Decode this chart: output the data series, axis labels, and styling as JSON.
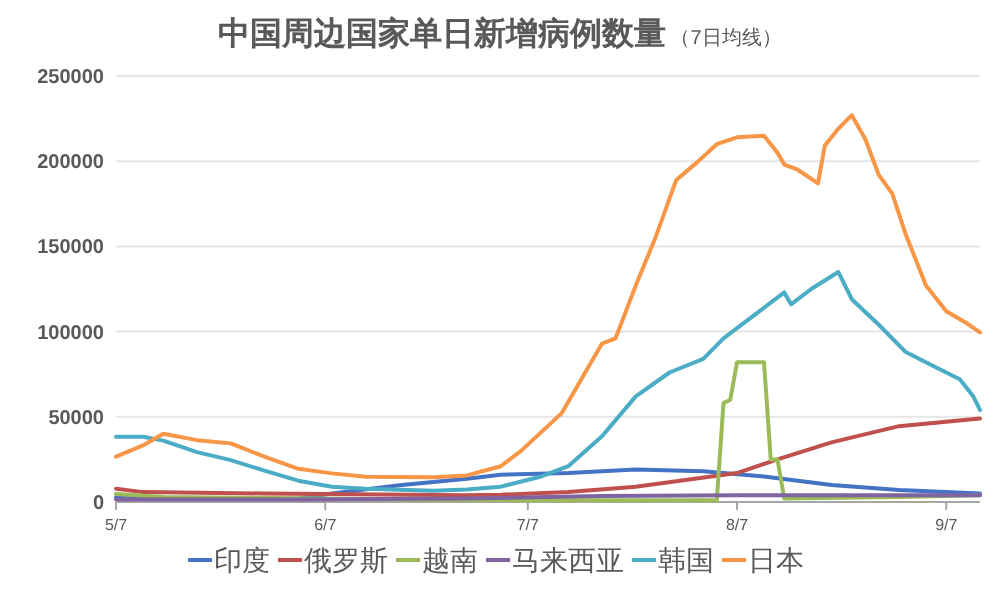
{
  "chart_data": {
    "type": "line",
    "title": "中国周边国家单日新增病例数量",
    "subtitle": "（7日均线）",
    "xlim": [
      "--05-07",
      "--09-12"
    ],
    "xticks": [
      {
        "value": "--05-07",
        "label": "5/7"
      },
      {
        "value": "--06-07",
        "label": "6/7"
      },
      {
        "value": "--07-07",
        "label": "7/7"
      },
      {
        "value": "--08-07",
        "label": "8/7"
      },
      {
        "value": "--09-07",
        "label": "9/7"
      }
    ],
    "ylim": [
      0,
      250000
    ],
    "yticks": [
      0,
      50000,
      100000,
      150000,
      200000,
      250000
    ],
    "grid": "y",
    "legend": "bottom",
    "marker": "none",
    "line_style": "solid",
    "series": [
      {
        "name": "印度",
        "color": "#4472c4",
        "x": [
          "--05-07",
          "--05-19",
          "--06-03",
          "--06-08",
          "--06-18",
          "--06-28",
          "--07-03",
          "--07-13",
          "--07-23",
          "--08-02",
          "--08-11",
          "--08-21",
          "--08-31",
          "--09-12"
        ],
        "values": [
          2800,
          2000,
          2000,
          5000,
          9800,
          13700,
          16000,
          17000,
          19000,
          18000,
          15000,
          10000,
          7000,
          5000
        ]
      },
      {
        "name": "俄罗斯",
        "color": "#c0504d",
        "x": [
          "--05-07",
          "--05-11",
          "--05-29",
          "--06-28",
          "--07-03",
          "--07-13",
          "--07-23",
          "--08-07",
          "--08-13",
          "--08-21",
          "--08-31",
          "--09-12"
        ],
        "values": [
          7800,
          5800,
          5000,
          4000,
          4300,
          5900,
          9000,
          17000,
          25000,
          35000,
          44500,
          49000
        ]
      },
      {
        "name": "越南",
        "color": "#9bbb59",
        "x": [
          "--05-07",
          "--05-14",
          "--06-18",
          "--07-18",
          "--08-04",
          "--08-05",
          "--08-06",
          "--08-07",
          "--08-11",
          "--08-12",
          "--08-13",
          "--08-14",
          "--08-31",
          "--09-12"
        ],
        "values": [
          4700,
          3000,
          1500,
          1000,
          1000,
          58000,
          60000,
          82000,
          82000,
          25000,
          25000,
          2000,
          3000,
          4000
        ]
      },
      {
        "name": "马来西亚",
        "color": "#8064a2",
        "x": [
          "--05-07",
          "--06-03",
          "--06-28",
          "--07-18",
          "--08-07",
          "--09-12"
        ],
        "values": [
          1500,
          1500,
          2000,
          3500,
          3900,
          3900
        ]
      },
      {
        "name": "韩国",
        "color": "#4bacc6",
        "x": [
          "--05-07",
          "--05-11",
          "--05-14",
          "--05-19",
          "--05-24",
          "--05-29",
          "--06-03",
          "--06-08",
          "--06-13",
          "--06-23",
          "--06-28",
          "--07-03",
          "--07-09",
          "--07-13",
          "--07-18",
          "--07-23",
          "--07-28",
          "--08-02",
          "--08-05",
          "--08-10",
          "--08-14",
          "--08-15",
          "--08-18",
          "--08-22",
          "--08-24",
          "--08-28",
          "--09-01",
          "--09-05",
          "--09-09",
          "--09-11",
          "--09-12"
        ],
        "values": [
          38300,
          38300,
          36000,
          29300,
          24600,
          18400,
          12500,
          9000,
          7800,
          6600,
          7400,
          9000,
          15000,
          21000,
          38600,
          62000,
          76000,
          84000,
          96000,
          111000,
          123000,
          116000,
          125000,
          135000,
          119000,
          104000,
          88000,
          80000,
          72000,
          62000,
          54000
        ]
      },
      {
        "name": "日本",
        "color": "#f79646",
        "x": [
          "--05-07",
          "--05-11",
          "--05-14",
          "--05-19",
          "--05-24",
          "--05-29",
          "--06-03",
          "--06-08",
          "--06-13",
          "--06-23",
          "--06-28",
          "--07-03",
          "--07-06",
          "--07-12",
          "--07-18",
          "--07-20",
          "--07-23",
          "--07-26",
          "--07-28",
          "--07-29",
          "--08-01",
          "--08-04",
          "--08-07",
          "--08-11",
          "--08-13",
          "--08-14",
          "--08-16",
          "--08-19",
          "--08-20",
          "--08-22",
          "--08-24",
          "--08-26",
          "--08-28",
          "--08-30",
          "--09-01",
          "--09-04",
          "--09-07",
          "--09-10",
          "--09-12"
        ],
        "values": [
          26600,
          33200,
          40000,
          36300,
          34400,
          26600,
          19500,
          16800,
          14800,
          14500,
          15600,
          21000,
          30000,
          52000,
          93000,
          96000,
          127000,
          156000,
          178000,
          189000,
          199000,
          210000,
          214000,
          215000,
          205000,
          198000,
          195000,
          187000,
          209000,
          219000,
          227000,
          213000,
          192000,
          181000,
          157000,
          127000,
          112000,
          105000,
          99600
        ]
      }
    ]
  }
}
